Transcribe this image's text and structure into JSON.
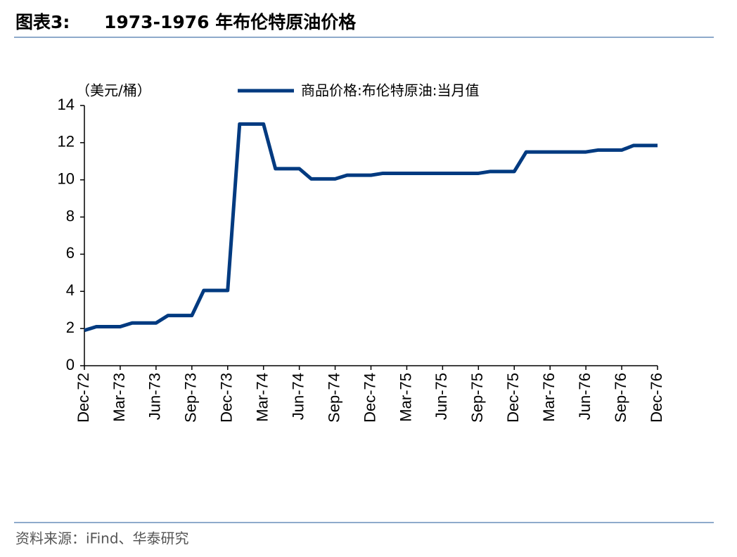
{
  "header": {
    "label": "图表3:",
    "title": "1973-1976 年布伦特原油价格"
  },
  "chart_data": {
    "type": "line",
    "y_unit": "（美元/桶）",
    "categories": [
      "Dec-72",
      null,
      null,
      "Mar-73",
      null,
      null,
      "Jun-73",
      null,
      null,
      "Sep-73",
      null,
      null,
      "Dec-73",
      null,
      null,
      "Mar-74",
      null,
      null,
      "Jun-74",
      null,
      null,
      "Sep-74",
      null,
      null,
      "Dec-74",
      null,
      null,
      "Mar-75",
      null,
      null,
      "Jun-75",
      null,
      null,
      "Sep-75",
      null,
      null,
      "Dec-75",
      null,
      null,
      "Mar-76",
      null,
      null,
      "Jun-76",
      null,
      null,
      "Sep-76",
      null,
      null,
      "Dec-76"
    ],
    "series": [
      {
        "name": "商品价格:布伦特原油:当月值",
        "color": "#003a80",
        "values": [
          1.9,
          2.1,
          2.1,
          2.1,
          2.3,
          2.3,
          2.3,
          2.7,
          2.7,
          2.7,
          4.05,
          4.05,
          4.05,
          13,
          13,
          13,
          10.6,
          10.6,
          10.6,
          10.05,
          10.05,
          10.05,
          10.25,
          10.25,
          10.25,
          10.35,
          10.35,
          10.35,
          10.35,
          10.35,
          10.35,
          10.35,
          10.35,
          10.35,
          10.45,
          10.45,
          10.45,
          11.5,
          11.5,
          11.5,
          11.5,
          11.5,
          11.5,
          11.6,
          11.6,
          11.6,
          11.85,
          11.85,
          11.85
        ]
      }
    ],
    "ylim": [
      0,
      14
    ],
    "yticks": [
      0,
      2,
      4,
      6,
      8,
      10,
      12,
      14
    ],
    "grid": false
  },
  "footer": {
    "source": "资料来源：iFind、华泰研究"
  }
}
